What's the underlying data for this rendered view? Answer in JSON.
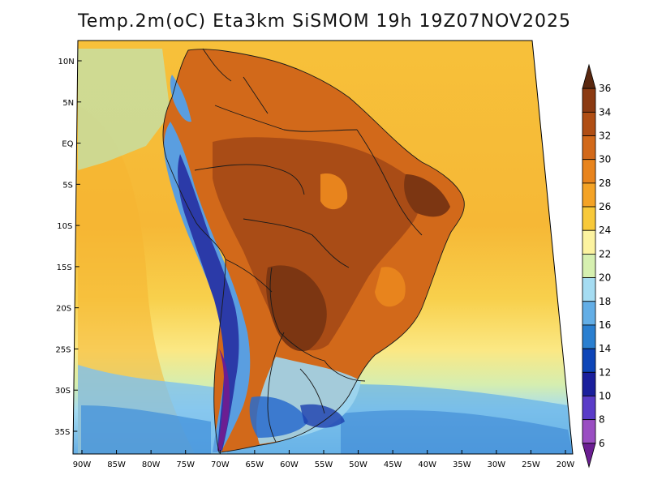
{
  "title": "Temp.2m(oC) Eta3km SiSMOM 19h 19Z07NOV2025",
  "map": {
    "lon_labels": [
      "90W",
      "85W",
      "80W",
      "75W",
      "70W",
      "65W",
      "60W",
      "55W",
      "50W",
      "45W",
      "40W",
      "35W",
      "30W",
      "25W",
      "20W"
    ],
    "lat_labels": [
      "10N",
      "5N",
      "EQ",
      "5S",
      "10S",
      "15S",
      "20S",
      "25S",
      "30S",
      "35S"
    ]
  },
  "colorbar": {
    "unit": "oC",
    "labels": [
      "36",
      "34",
      "32",
      "30",
      "28",
      "26",
      "24",
      "22",
      "20",
      "18",
      "16",
      "14",
      "12",
      "10",
      "8",
      "6"
    ],
    "colors": [
      "#5a2810",
      "#8b3a12",
      "#b04e14",
      "#d2691a",
      "#e8841d",
      "#f4a326",
      "#f8c93a",
      "#fcf3a0",
      "#d6f0b0",
      "#a5dcf2",
      "#63aee6",
      "#2a7fd0",
      "#0d45b8",
      "#1a1f9c",
      "#5a3cc8",
      "#9a4ec2",
      "#6b1e92"
    ]
  }
}
